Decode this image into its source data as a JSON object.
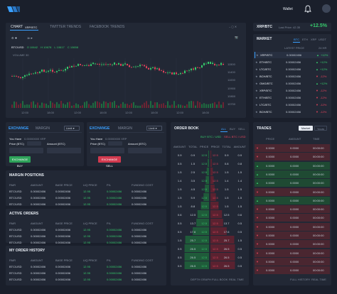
{
  "topbar": {
    "wallet": "Wallet"
  },
  "chart_panel": {
    "tabs": [
      "CHART",
      "TWITTER TRENDS",
      "FACEBOOK TRENDS"
    ],
    "pair_tag": "XRP/BTC",
    "toolbar": {
      "symbol": "BTC/USD",
      "o": "O 10642",
      "h": "H 10678",
      "l": "L 10617",
      "c": "C 10658",
      "volume": "VOLUME 30"
    },
    "y_ticks": [
      "11500",
      "11400",
      "11000",
      "10900",
      "10800",
      "10700"
    ],
    "x_ticks": [
      "12:00",
      "18:00",
      "12:00",
      "18:00",
      "12:00",
      "18:00",
      "12:00",
      "18:00"
    ]
  },
  "pair_panel": {
    "pair": "XRP/BTC",
    "last_price": "Last Price: 42.35",
    "change": "+12.5%"
  },
  "market": {
    "title": "MARKET",
    "tabs": [
      "BTC",
      "ETH",
      "XRP",
      "USDT"
    ],
    "headers": [
      "LATEST PRICE",
      "24 HR"
    ],
    "rows": [
      {
        "pair": "XRP/BTC",
        "price": "0.00002456",
        "change": "+12%",
        "up": true
      },
      {
        "pair": "ETH/BTC",
        "price": "0.00002456",
        "change": "+12%",
        "up": true
      },
      {
        "pair": "LTC/BTC",
        "price": "0.00002456",
        "change": "+12%",
        "up": true
      },
      {
        "pair": "BCH/BTC",
        "price": "0.00002456",
        "change": "-12%",
        "up": false
      },
      {
        "pair": "OMG/BTC",
        "price": "0.00002456",
        "change": "+12%",
        "up": true
      },
      {
        "pair": "XRP/BTC",
        "price": "0.00002456",
        "change": "-12%",
        "up": false
      },
      {
        "pair": "ETH/BTC",
        "price": "0.00002456",
        "change": "-12%",
        "up": false
      },
      {
        "pair": "LTC/BTC",
        "price": "0.00002456",
        "change": "-12%",
        "up": false
      },
      {
        "pair": "BCH/BTC",
        "price": "0.00002456",
        "change": "-12%",
        "up": false
      }
    ]
  },
  "exchange_buy": {
    "tab1": "EXCHANGE",
    "tab2": "MARGIN",
    "select": "Limit",
    "you_have_label": "You Have",
    "you_have": "0.00000000 XRP",
    "price_label": "Price (BTC)",
    "amount_label": "Amount (BTC)",
    "button": "EXCHANGE BUY"
  },
  "exchange_sell": {
    "tab1": "EXCHANGE",
    "tab2": "MARGIN",
    "select": "Limit",
    "you_have_label": "You Have",
    "you_have": "0.00000000 XRP",
    "price_label": "Price (BTC)",
    "amount_label": "Amount (BTC)",
    "button": "EXCHANGE SELL"
  },
  "margin_positions": {
    "title": "MARGIN POSITIONS",
    "headers": [
      "PAIR",
      "AMOUNT",
      "BASE PRICE",
      "LIQ PRICE",
      "P/L",
      "FUNDING COST"
    ],
    "rows": [
      [
        "BTC/USD",
        "0.00002456",
        "0.00002456",
        "12.95",
        "0.00002456",
        "0.00002456"
      ],
      [
        "BTC/USD",
        "0.00002456",
        "0.00002456",
        "12.95",
        "0.00002456",
        "0.00002456"
      ],
      [
        "BTC/USD",
        "0.00002456",
        "0.00002456",
        "12.95",
        "0.00002456",
        "0.00002456"
      ]
    ]
  },
  "active_orders": {
    "title": "ACTIVE ORDERS",
    "headers": [
      "PAIR",
      "AMOUNT",
      "BASE PRICE",
      "LIQ PRICE",
      "P/L",
      "FUNDING COST"
    ],
    "rows": [
      [
        "BTC/USD",
        "0.00002456",
        "0.00002456",
        "12.95",
        "0.00002456",
        "0.00002456"
      ],
      [
        "BTC/USD",
        "0.00002456",
        "0.00002456",
        "12.95",
        "0.00002456",
        "0.00002456"
      ],
      [
        "BTC/USD",
        "0.00002456",
        "0.00002456",
        "12.95",
        "0.00002456",
        "0.00002456"
      ]
    ]
  },
  "order_history": {
    "title": "MY ORDER HISTORY",
    "headers": [
      "PAIR",
      "AMOUNT",
      "BASE PRICE",
      "LIQ PRICE",
      "P/L",
      "FUNDING COST"
    ],
    "rows": [
      [
        "BTC/USD",
        "0.00002456",
        "0.00002456",
        "12.95",
        "0.00002456",
        "0.00002456"
      ],
      [
        "BTC/USD",
        "0.00002456",
        "0.00002456",
        "12.95",
        "0.00002456",
        "0.00002456"
      ],
      [
        "BTC/USD",
        "0.00002456",
        "0.00002456",
        "12.95",
        "0.00002456",
        "0.00002456"
      ]
    ]
  },
  "order_book": {
    "title": "ORDER BOOK",
    "tabs": [
      "ALL",
      "BUY",
      "SELL"
    ],
    "buy_label": "BUY BTC / USD",
    "sell_label": "SELL BTC / USD",
    "headers": [
      "AMOUNT",
      "TOTAL",
      "PRICE",
      "PRICE",
      "TOTAL",
      "AMOUNT"
    ],
    "rows": [
      [
        "0.9",
        "0.9",
        "12.5",
        "12.5",
        "0.9",
        "0.9"
      ],
      [
        "0.5",
        "1.5",
        "12.5",
        "12.5",
        "0.8",
        "0.8"
      ],
      [
        "1.5",
        "2.5",
        "12.5",
        "12.5",
        "1.5",
        "1.5"
      ],
      [
        "1.4",
        "3.5",
        "12.5",
        "12.5",
        "1.4",
        "1.4"
      ],
      [
        "1.5",
        "4.5",
        "12.5",
        "12.5",
        "1.5",
        "1.5"
      ],
      [
        "1.5",
        "5.9",
        "12.5",
        "12.5",
        "1.5",
        "1.5"
      ],
      [
        "1.5",
        "8.8",
        "12.5",
        "12.5",
        "1.5",
        "1.5"
      ],
      [
        "0.6",
        "12.5",
        "12.5",
        "12.5",
        "12.5",
        "0.6"
      ],
      [
        "0.5",
        "13.7",
        "12.5",
        "12.5",
        "13.7",
        "0.5"
      ],
      [
        "0.5",
        "17.6",
        "12.5",
        "12.5",
        "17.6",
        "0.5"
      ],
      [
        "1.5",
        "25.7",
        "12.5",
        "12.5",
        "25.7",
        "1.5"
      ],
      [
        "0.5",
        "26.5",
        "12.5",
        "12.5",
        "26.5",
        "0.5"
      ],
      [
        "0.5",
        "26.5",
        "12.5",
        "12.5",
        "26.5",
        "0.5"
      ],
      [
        "0.5",
        "26.5",
        "12.5",
        "12.5",
        "26.5",
        "0.5"
      ]
    ],
    "footer": [
      "DEPTH GRAPH",
      "FULL BOOK",
      "REAL TIME"
    ]
  },
  "trades": {
    "title": "TRADES",
    "tabs": [
      "Market",
      "Yours"
    ],
    "headers": [
      "PRICE",
      "AMOUNT",
      "TIME"
    ],
    "rows": [
      {
        "price": "0.0000",
        "amount": "0.0000",
        "time": "00:00:00",
        "up": false
      },
      {
        "price": "0.0000",
        "amount": "0.0000",
        "time": "00:00:00",
        "up": false
      },
      {
        "price": "0.0000",
        "amount": "0.0000",
        "time": "00:00:00",
        "up": true
      },
      {
        "price": "0.0000",
        "amount": "0.0000",
        "time": "00:00:00",
        "up": true
      },
      {
        "price": "0.0000",
        "amount": "0.0000",
        "time": "00:00:00",
        "up": true
      },
      {
        "price": "0.0000",
        "amount": "0.0000",
        "time": "00:00:00",
        "up": false
      },
      {
        "price": "0.0000",
        "amount": "0.0000",
        "time": "00:00:00",
        "up": true
      },
      {
        "price": "0.0000",
        "amount": "0.0000",
        "time": "00:00:00",
        "up": false
      },
      {
        "price": "0.0000",
        "amount": "0.0000",
        "time": "00:00:00",
        "up": false
      },
      {
        "price": "0.0000",
        "amount": "0.0000",
        "time": "00:00:00",
        "up": false
      },
      {
        "price": "0.0000",
        "amount": "0.0000",
        "time": "00:00:00",
        "up": false
      },
      {
        "price": "0.0000",
        "amount": "0.0000",
        "time": "00:00:00",
        "up": false
      },
      {
        "price": "0.0000",
        "amount": "0.0000",
        "time": "00:00:00",
        "up": false
      },
      {
        "price": "0.0000",
        "amount": "0.0000",
        "time": "00:00:00",
        "up": false
      },
      {
        "price": "0.0000",
        "amount": "0.0000",
        "time": "00:00:00",
        "up": false
      }
    ],
    "footer": [
      "FULL HISTORY",
      "REAL TIME"
    ]
  },
  "colors": {
    "bg": "#1a1f2b",
    "panel": "#222835",
    "accent": "#3aa0ff",
    "green": "#36c96b",
    "red": "#e2445c"
  }
}
